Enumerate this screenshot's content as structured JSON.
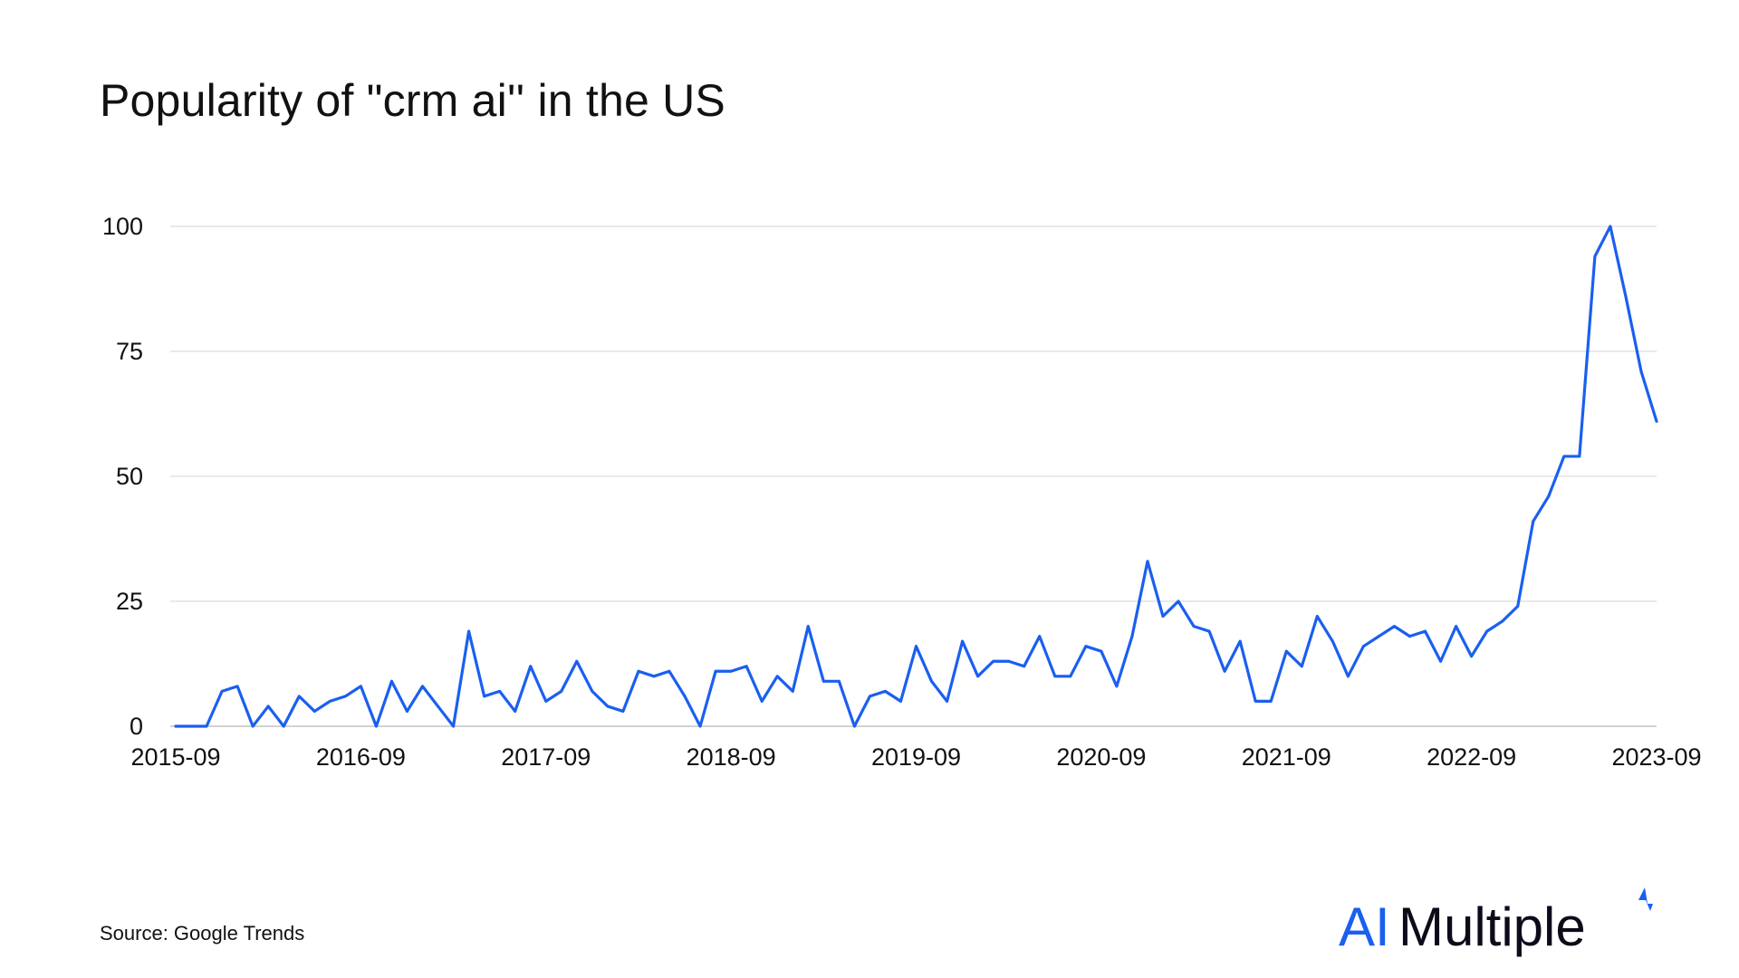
{
  "chart_data": {
    "type": "line",
    "title": "Popularity of \"crm ai'' in the US",
    "xlabel": "",
    "ylabel": "",
    "ylim": [
      0,
      100
    ],
    "yticks": [
      0,
      25,
      50,
      75,
      100
    ],
    "x_start": "2015-09",
    "x_end": "2023-09",
    "x_tick_labels": [
      "2015-09",
      "2016-09",
      "2017-09",
      "2018-09",
      "2019-09",
      "2020-09",
      "2021-09",
      "2022-09",
      "2023-09"
    ],
    "grid": true,
    "line_color": "#1a5ff0",
    "series": [
      {
        "values": [
          0,
          0,
          0,
          7,
          8,
          0,
          4,
          0,
          6,
          3,
          5,
          6,
          8,
          0,
          9,
          3,
          8,
          4,
          0,
          19,
          6,
          7,
          3,
          12,
          5,
          7,
          13,
          7,
          4,
          3,
          11,
          10,
          11,
          6,
          0,
          11,
          11,
          12,
          5,
          10,
          7,
          20,
          9,
          9,
          0,
          6,
          7,
          5,
          16,
          9,
          5,
          17,
          10,
          13,
          13,
          12,
          18,
          10,
          10,
          16,
          15,
          8,
          18,
          33,
          22,
          25,
          20,
          19,
          11,
          17,
          5,
          5,
          15,
          12,
          22,
          17,
          10,
          16,
          18,
          20,
          18,
          19,
          13,
          20,
          14,
          19,
          21,
          24,
          41,
          46,
          54,
          54,
          94,
          100,
          86,
          71,
          61
        ]
      }
    ]
  },
  "footer": {
    "source": "Source: Google Trends"
  },
  "logo": {
    "text_ai": "AI",
    "text_rest": "Multiple",
    "ai_color": "#1a5ff0",
    "text_color": "#0b0b1a"
  }
}
